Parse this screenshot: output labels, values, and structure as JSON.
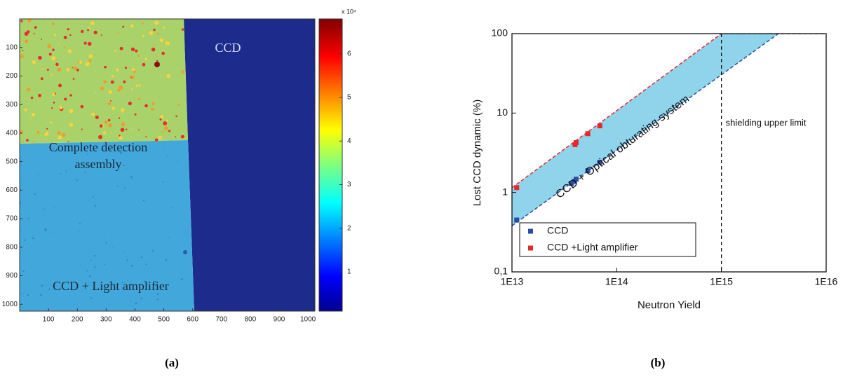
{
  "chart_data": [
    {
      "type": "heatmap",
      "xlim": [
        0,
        1024
      ],
      "xticks": [
        100,
        200,
        300,
        400,
        500,
        600,
        700,
        800,
        900,
        1000
      ],
      "ylim": [
        0,
        1024
      ],
      "y_reversed": true,
      "yticks": [
        100,
        200,
        300,
        400,
        500,
        600,
        700,
        800,
        900,
        1000
      ],
      "colorbar": {
        "clim": [
          0.1,
          6.8
        ],
        "ticks": [
          1,
          2,
          3,
          4,
          5,
          6
        ],
        "exponent_label": "x 10⁴"
      },
      "annotations": [
        [
          "CCD"
        ],
        [
          "Complete detection",
          "assembly"
        ],
        [
          "CCD + Light amplifier"
        ]
      ],
      "caption": "(a)"
    },
    {
      "type": "scatter",
      "xlog": true,
      "ylog": true,
      "xlim": [
        10000000000000.0,
        1e+16
      ],
      "xticks": [
        {
          "value": 10000000000000.0,
          "label": "1E13"
        },
        {
          "value": 100000000000000.0,
          "label": "1E14"
        },
        {
          "value": 1000000000000000.0,
          "label": "1E15"
        },
        {
          "value": 1e+16,
          "label": "1E16"
        }
      ],
      "ylim": [
        0.1,
        100
      ],
      "yticks": [
        {
          "value": 0.1,
          "label": "0,1"
        },
        1,
        10,
        100
      ],
      "xlabel": "Neutron Yield",
      "ylabel": "Lost CCD dynamic (%)",
      "series": [
        {
          "name": "CCD",
          "color": "#2a4ca6",
          "x": [
            11100000000000.0,
            37000000000000.0,
            39500000000000.0,
            41000000000000.0,
            53000000000000.0,
            69000000000000.0
          ],
          "values": [
            0.45,
            1.3,
            1.38,
            1.47,
            1.88,
            2.4
          ]
        },
        {
          "name": "CCD +Light amplifier",
          "color": "#e8262b",
          "x": [
            11100000000000.0,
            41000000000000.0,
            40000000000000.0,
            53000000000000.0,
            69000000000000.0
          ],
          "values": [
            1.15,
            4.25,
            4.0,
            5.5,
            6.9
          ]
        }
      ],
      "band": {
        "label": "CCD + Optical obturating system",
        "color": "#8fd4ea",
        "upper": {
          "color": "#e8262b",
          "x": [
            10000000000000.0,
            1000000000000000.0,
            1e+16
          ],
          "values": [
            1.15,
            100,
            100
          ]
        },
        "lower": {
          "color": "#2a4ca6",
          "x": [
            10000000000000.0,
            3500000000000000.0,
            1e+16
          ],
          "values": [
            0.38,
            100,
            100
          ]
        }
      },
      "vline": {
        "x": 1000000000000000.0,
        "label": "shielding upper limit"
      },
      "legend": "lower left",
      "caption": "(b)"
    }
  ]
}
